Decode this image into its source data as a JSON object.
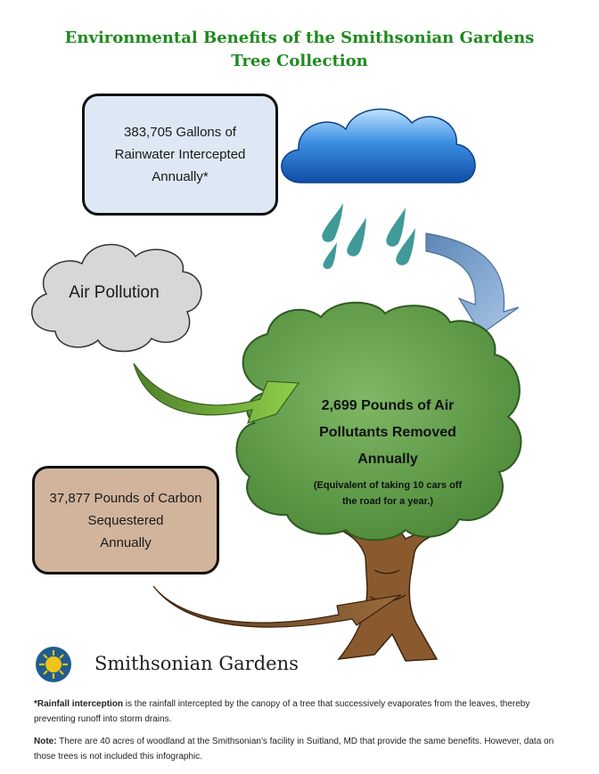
{
  "title": {
    "line1": "Environmental Benefits of the Smithsonian Gardens",
    "line2": "Tree Collection"
  },
  "rainfall_box": {
    "line1": "383,705 Gallons of",
    "line2": "Rainwater Intercepted",
    "line3": "Annually*"
  },
  "air_pollution_cloud": {
    "label": "Air Pollution"
  },
  "tree": {
    "line1": "2,699 Pounds of Air",
    "line2": "Pollutants Removed",
    "line3": "Annually",
    "equivalent_line1": "(Equivalent of taking 10 cars off",
    "equivalent_line2": "the road for a year.)"
  },
  "carbon_box": {
    "line1": "37,877 Pounds of Carbon",
    "line2": "Sequestered",
    "line3": "Annually"
  },
  "logo": {
    "text": "Smithsonian Gardens"
  },
  "footnotes": {
    "rainfall_term": "*Rainfall interception",
    "rainfall_text": " is the rainfall intercepted by the canopy of a tree that successively evaporates from the leaves, thereby preventing runoff into storm drains.",
    "note_label": "Note:",
    "note_text": "  There are 40 acres of woodland at the Smithsonian's facility in Suitland, MD that provide the same benefits. However, data on those trees is not included this infographic."
  },
  "colors": {
    "title_green": "#1f8a1f",
    "rain_box_fill": "#dde8f4",
    "carbon_box_fill": "#d2b49c",
    "tree_green": "#5c9a45",
    "trunk_brown": "#8a5a2e",
    "raindrop_teal": "#3f9a98"
  }
}
